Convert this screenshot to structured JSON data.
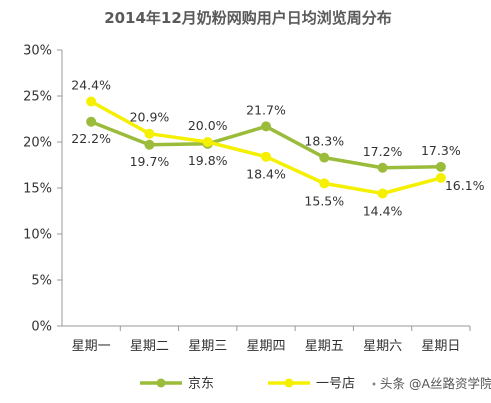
{
  "chart_data": {
    "type": "line",
    "title": "2014年12月奶粉网购用户日均浏览周分布",
    "categories": [
      "星期一",
      "星期二",
      "星期三",
      "星期四",
      "星期五",
      "星期六",
      "星期日"
    ],
    "series": [
      {
        "name": "京东",
        "color": "#9bbb3b",
        "values": [
          22.2,
          19.7,
          19.8,
          21.7,
          18.3,
          17.2,
          17.3
        ],
        "labels": [
          "22.2%",
          "19.7%",
          "19.8%",
          "21.7%",
          "18.3%",
          "17.2%",
          "17.3%"
        ]
      },
      {
        "name": "一号店",
        "color": "#f5f000",
        "values": [
          24.4,
          20.9,
          20.0,
          18.4,
          15.5,
          14.4,
          16.1
        ],
        "labels": [
          "24.4%",
          "20.9%",
          "20.0%",
          "18.4%",
          "15.5%",
          "14.4%",
          "16.1%"
        ]
      }
    ],
    "yticks": [
      0,
      5,
      10,
      15,
      20,
      25,
      30
    ],
    "ytick_labels": [
      "0%",
      "5%",
      "10%",
      "15%",
      "20%",
      "25%",
      "30%"
    ],
    "ylim": [
      0,
      30
    ],
    "grid": false,
    "legend_position": "bottom"
  },
  "watermark": "头条 @A丝路资学院"
}
